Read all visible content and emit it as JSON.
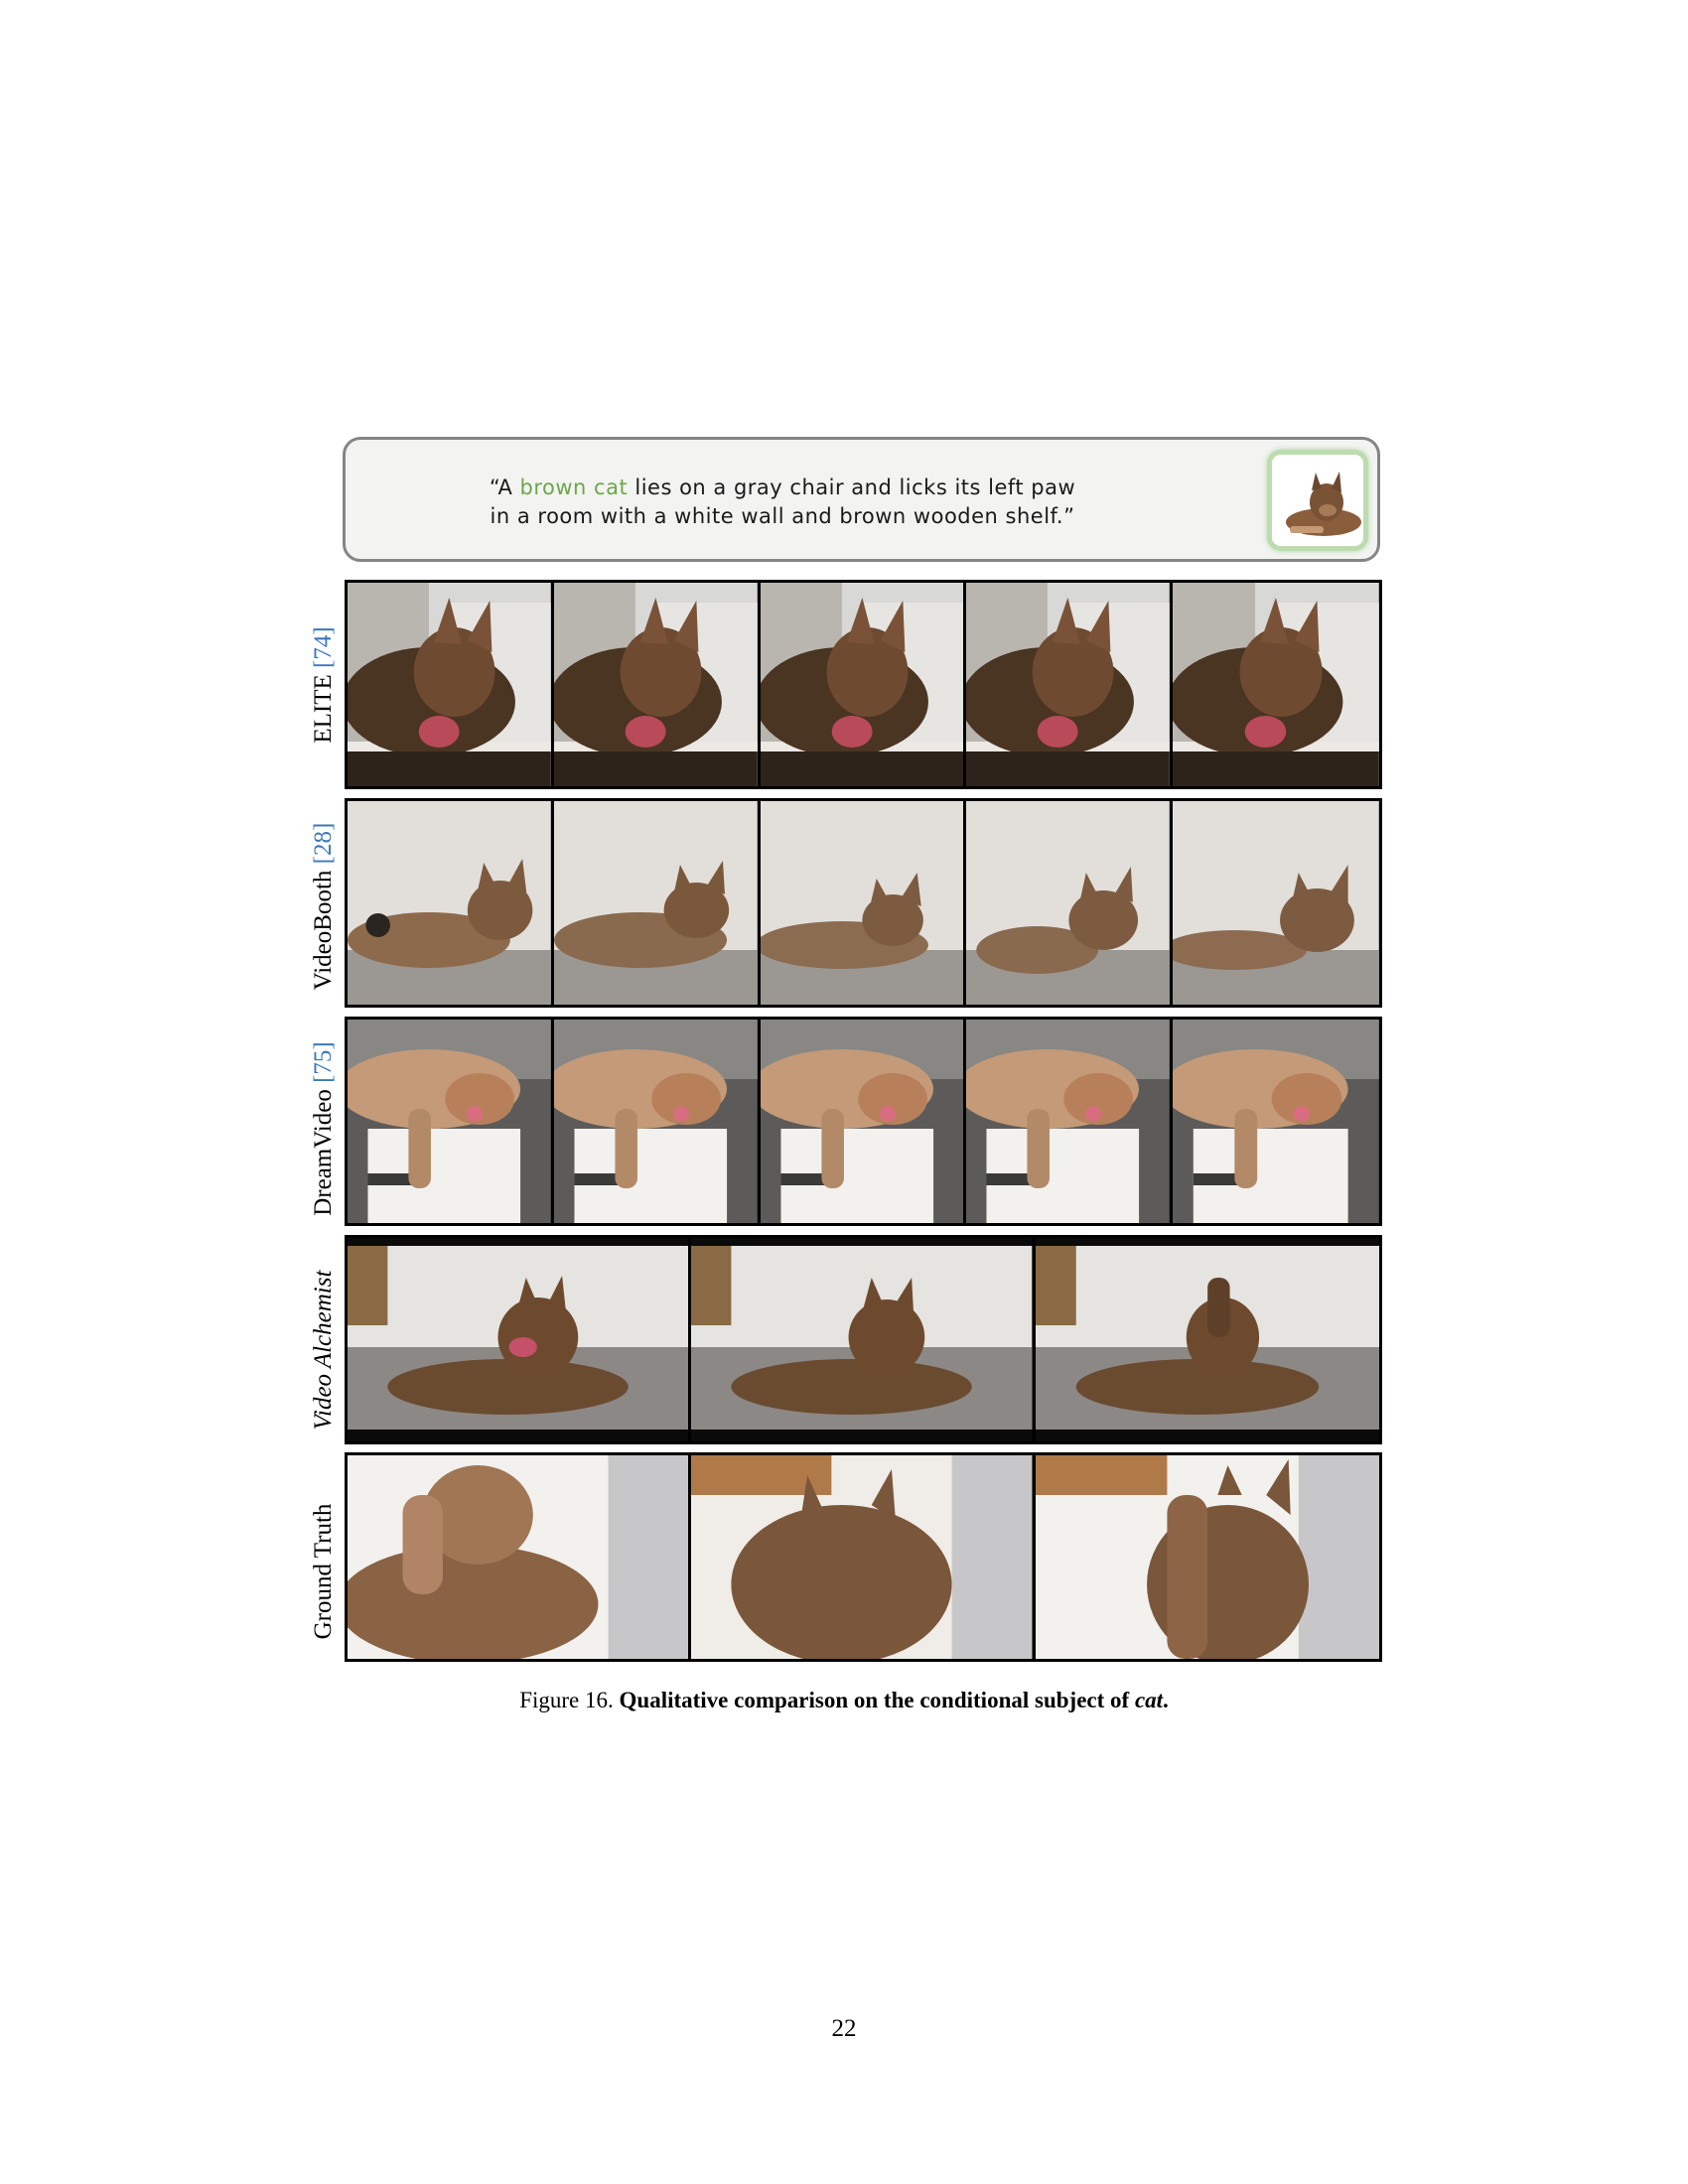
{
  "prompt": {
    "line1_pre": "“A ",
    "line1_highlight": "brown cat",
    "line1_post": " lies on a gray chair and licks its left paw",
    "line2": "in a room with a white wall and brown wooden shelf.”",
    "highlight_color": "#6da74c"
  },
  "rows": [
    {
      "label": "ELITE",
      "cite": "[74]",
      "italic": false,
      "frames": 5
    },
    {
      "label": "VideoBooth",
      "cite": "[28]",
      "italic": false,
      "frames": 5
    },
    {
      "label": "DreamVideo",
      "cite": "[75]",
      "italic": false,
      "frames": 5
    },
    {
      "label": "Video Alchemist",
      "cite": "",
      "italic": true,
      "frames": 3
    },
    {
      "label": "Ground Truth",
      "cite": "",
      "italic": false,
      "frames": 3
    }
  ],
  "caption": {
    "prefix": "Figure 16.",
    "bold": "Qualitative comparison on the conditional subject of",
    "bold_italic": "cat",
    "suffix": "."
  },
  "page_number": "22",
  "colors": {
    "citation": "#3b78b8",
    "frame_border": "#000000",
    "prompt_border": "#858585"
  }
}
